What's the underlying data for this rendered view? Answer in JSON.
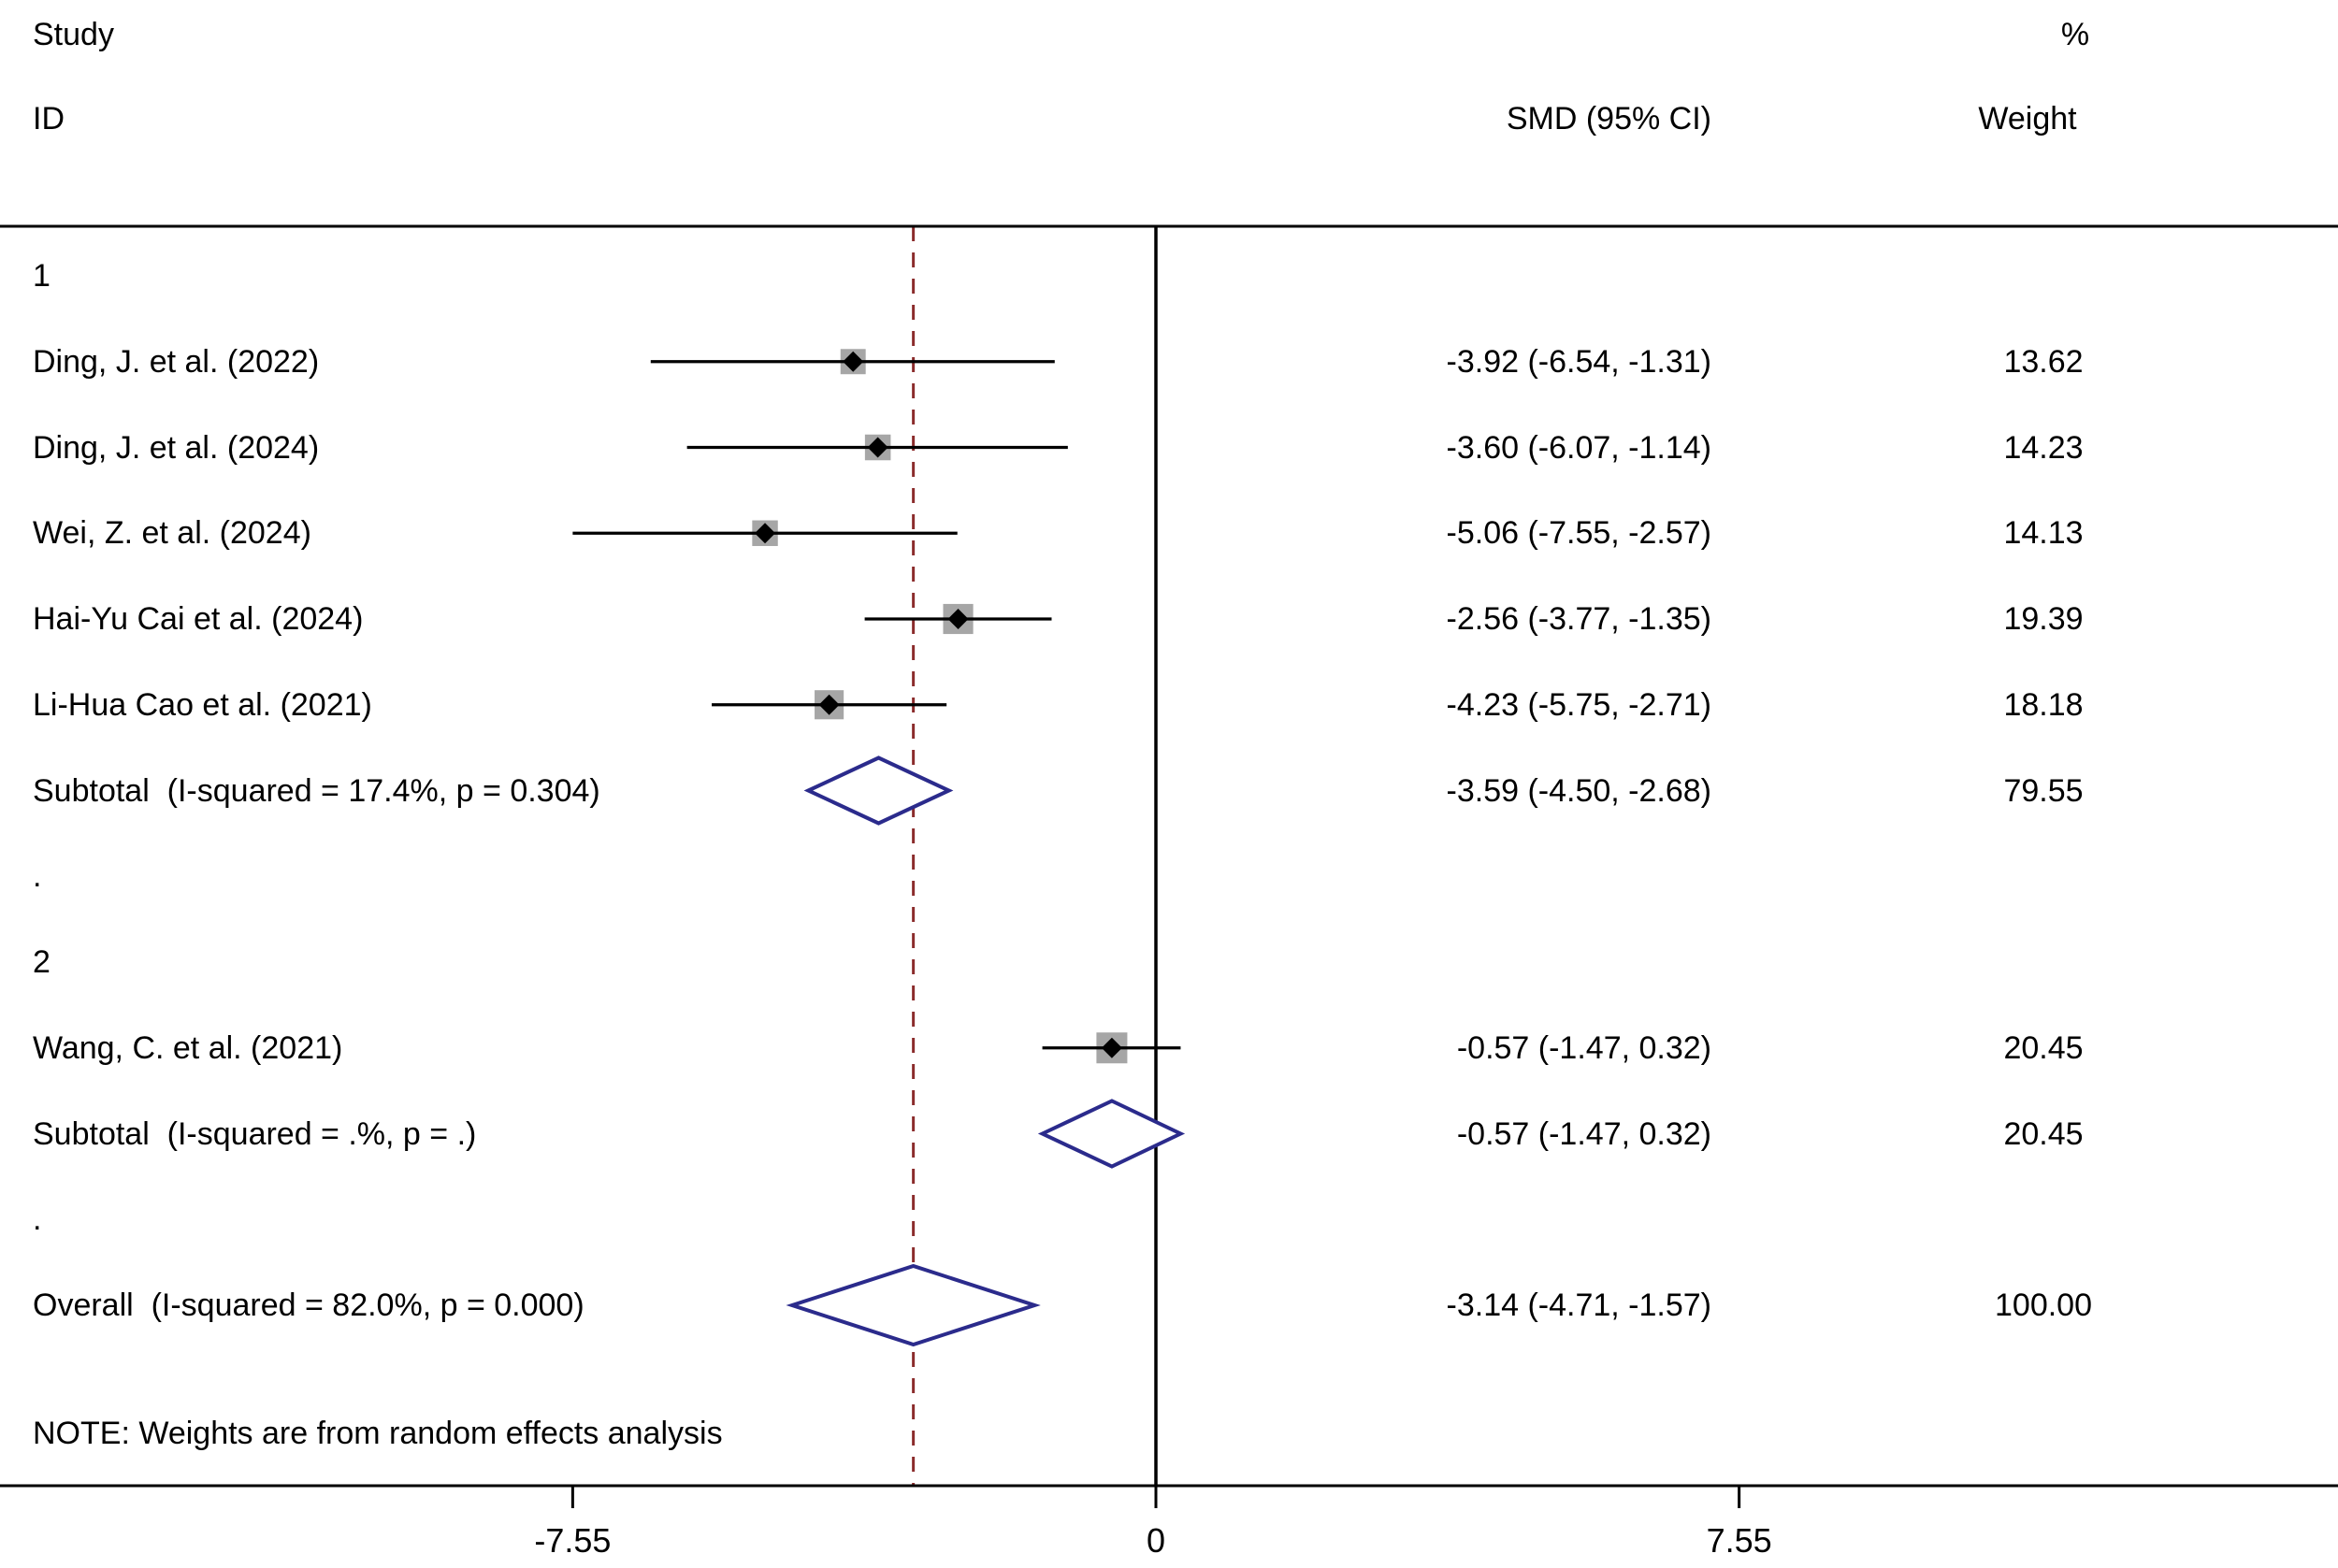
{
  "chart_data": {
    "type": "forest",
    "title": "",
    "columns": {
      "study": "Study",
      "id": "ID",
      "smd": "SMD (95% CI)",
      "percent": "%",
      "weight": "Weight"
    },
    "axis": {
      "ticks": [
        -7.55,
        0,
        7.55
      ],
      "tick_labels": [
        "-7.55",
        "0",
        "7.55"
      ],
      "range": [
        -7.55,
        7.55
      ],
      "null_line": 0,
      "overall_line": -3.14
    },
    "spacer": ".",
    "groups": [
      {
        "label": "1",
        "studies": [
          {
            "label": "Ding, J. et al. (2022)",
            "smd": -3.92,
            "ci_low": -6.54,
            "ci_high": -1.31,
            "ci_text": "-3.92 (-6.54, -1.31)",
            "weight": 13.62,
            "weight_text": "13.62"
          },
          {
            "label": "Ding, J. et al. (2024)",
            "smd": -3.6,
            "ci_low": -6.07,
            "ci_high": -1.14,
            "ci_text": "-3.60 (-6.07, -1.14)",
            "weight": 14.23,
            "weight_text": "14.23"
          },
          {
            "label": "Wei, Z. et al. (2024)",
            "smd": -5.06,
            "ci_low": -7.55,
            "ci_high": -2.57,
            "ci_text": "-5.06 (-7.55, -2.57)",
            "weight": 14.13,
            "weight_text": "14.13"
          },
          {
            "label": "Hai-Yu Cai et al. (2024)",
            "smd": -2.56,
            "ci_low": -3.77,
            "ci_high": -1.35,
            "ci_text": "-2.56 (-3.77, -1.35)",
            "weight": 19.39,
            "weight_text": "19.39"
          },
          {
            "label": "Li-Hua Cao et al. (2021)",
            "smd": -4.23,
            "ci_low": -5.75,
            "ci_high": -2.71,
            "ci_text": "-4.23 (-5.75, -2.71)",
            "weight": 18.18,
            "weight_text": "18.18"
          }
        ],
        "subtotal": {
          "label": "Subtotal  (I-squared = 17.4%, p = 0.304)",
          "smd": -3.59,
          "ci_low": -4.5,
          "ci_high": -2.68,
          "ci_text": "-3.59 (-4.50, -2.68)",
          "weight_text": "79.55"
        }
      },
      {
        "label": "2",
        "studies": [
          {
            "label": "Wang, C. et al. (2021)",
            "smd": -0.57,
            "ci_low": -1.47,
            "ci_high": 0.32,
            "ci_text": "-0.57 (-1.47, 0.32)",
            "weight": 20.45,
            "weight_text": "20.45"
          }
        ],
        "subtotal": {
          "label": "Subtotal  (I-squared = .%, p = .)",
          "smd": -0.57,
          "ci_low": -1.47,
          "ci_high": 0.32,
          "ci_text": "-0.57 (-1.47, 0.32)",
          "weight_text": "20.45"
        }
      }
    ],
    "overall": {
      "label": "Overall  (I-squared = 82.0%, p = 0.000)",
      "smd": -3.14,
      "ci_low": -4.71,
      "ci_high": -1.57,
      "ci_text": "-3.14 (-4.71, -1.57)",
      "weight_text": "100.00"
    },
    "note": "NOTE: Weights are from random effects analysis",
    "colors": {
      "diamond": "#2b2b8c",
      "ci_line": "#000000",
      "marker": "#000000",
      "weight_box": "#a6a6a6",
      "dashed_line": "#8b2c2c",
      "rule": "#000000",
      "background": "#ffffff",
      "text": "#000000"
    }
  }
}
